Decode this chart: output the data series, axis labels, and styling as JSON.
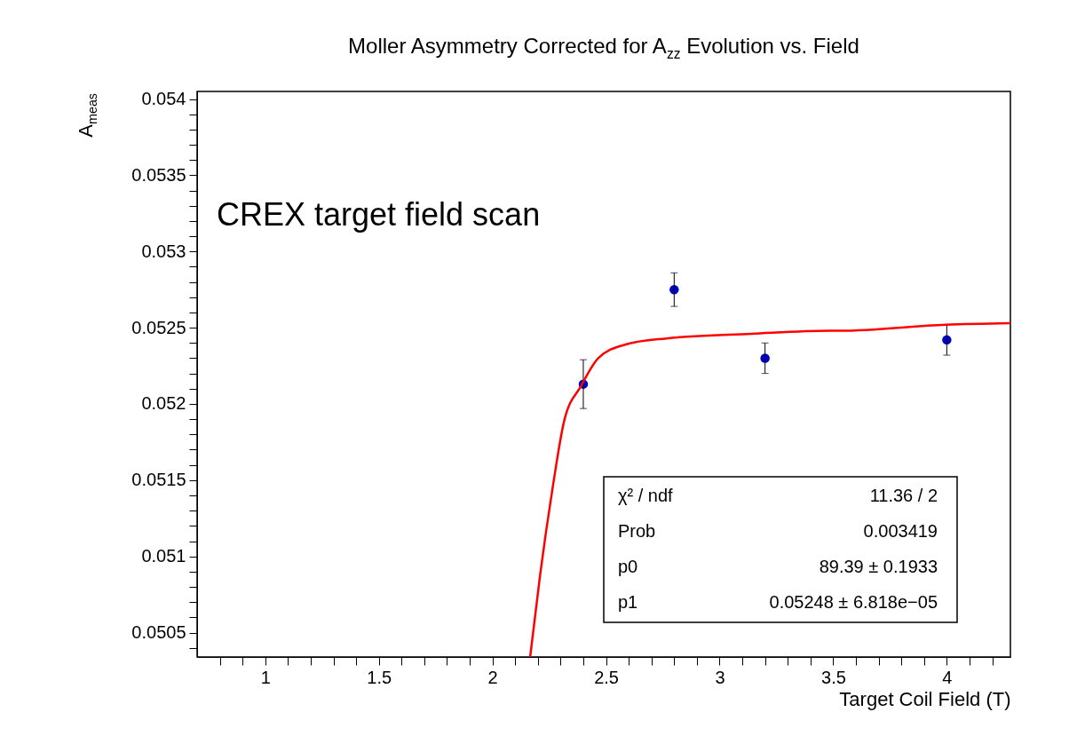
{
  "chart_data": {
    "type": "scatter",
    "title": "Moller Asymmetry Corrected for A$_{zz}$ Evolution vs. Field",
    "xlabel": "Target Coil Field (T)",
    "ylabel": "A$_{meas}$",
    "xlim": [
      0.7,
      4.28
    ],
    "ylim": [
      0.05034,
      0.05405
    ],
    "xticks": [
      {
        "value": 0.8,
        "label": null
      },
      {
        "value": 0.9,
        "label": null
      },
      1,
      {
        "value": 1.1,
        "label": null
      },
      {
        "value": 1.2,
        "label": null
      },
      {
        "value": 1.3,
        "label": null
      },
      {
        "value": 1.4,
        "label": null
      },
      1.5,
      {
        "value": 1.6,
        "label": null
      },
      {
        "value": 1.7,
        "label": null
      },
      {
        "value": 1.8,
        "label": null
      },
      {
        "value": 1.9,
        "label": null
      },
      2,
      {
        "value": 2.1,
        "label": null
      },
      {
        "value": 2.2,
        "label": null
      },
      {
        "value": 2.3,
        "label": null
      },
      {
        "value": 2.4,
        "label": null
      },
      2.5,
      {
        "value": 2.6,
        "label": null
      },
      {
        "value": 2.7,
        "label": null
      },
      {
        "value": 2.8,
        "label": null
      },
      {
        "value": 2.9,
        "label": null
      },
      3,
      {
        "value": 3.1,
        "label": null
      },
      {
        "value": 3.2,
        "label": null
      },
      {
        "value": 3.3,
        "label": null
      },
      {
        "value": 3.4,
        "label": null
      },
      3.5,
      {
        "value": 3.6,
        "label": null
      },
      {
        "value": 3.7,
        "label": null
      },
      {
        "value": 3.8,
        "label": null
      },
      {
        "value": 3.9,
        "label": null
      },
      4,
      {
        "value": 4.1,
        "label": null
      },
      {
        "value": 4.2,
        "label": null
      }
    ],
    "yticks": [
      {
        "value": 0.0504,
        "label": null
      },
      0.0505,
      {
        "value": 0.0506,
        "label": null
      },
      {
        "value": 0.0507,
        "label": null
      },
      {
        "value": 0.0508,
        "label": null
      },
      {
        "value": 0.0509,
        "label": null
      },
      0.051,
      {
        "value": 0.0511,
        "label": null
      },
      {
        "value": 0.0512,
        "label": null
      },
      {
        "value": 0.0513,
        "label": null
      },
      {
        "value": 0.0514,
        "label": null
      },
      0.0515,
      {
        "value": 0.0516,
        "label": null
      },
      {
        "value": 0.0517,
        "label": null
      },
      {
        "value": 0.0518,
        "label": null
      },
      {
        "value": 0.0519,
        "label": null
      },
      0.052,
      {
        "value": 0.0521,
        "label": null
      },
      {
        "value": 0.0522,
        "label": null
      },
      {
        "value": 0.0523,
        "label": null
      },
      {
        "value": 0.0524,
        "label": null
      },
      0.0525,
      {
        "value": 0.0526,
        "label": null
      },
      {
        "value": 0.0527,
        "label": null
      },
      {
        "value": 0.0528,
        "label": null
      },
      {
        "value": 0.0529,
        "label": null
      },
      0.053,
      {
        "value": 0.0531,
        "label": null
      },
      {
        "value": 0.0532,
        "label": null
      },
      {
        "value": 0.0533,
        "label": null
      },
      {
        "value": 0.0534,
        "label": null
      },
      0.0535,
      {
        "value": 0.0536,
        "label": null
      },
      {
        "value": 0.0537,
        "label": null
      },
      {
        "value": 0.0538,
        "label": null
      },
      {
        "value": 0.0539,
        "label": null
      },
      0.054
    ],
    "grid": false,
    "marker": "circle",
    "series": [
      {
        "type": "scatter",
        "color": "#0000cc",
        "x": [
          2.4,
          2.8,
          3.2,
          4.0
        ],
        "values": [
          0.05213,
          0.05275,
          0.0523,
          0.05242
        ],
        "errors": [
          0.00016,
          0.00011,
          0.0001,
          0.0001
        ]
      },
      {
        "type": "line",
        "color": "#ff0000",
        "marker": "none",
        "x": [
          2.166,
          2.21,
          2.264,
          2.316,
          2.391,
          2.466,
          2.586,
          2.766,
          3.141,
          3.485,
          3.531,
          3.996,
          4.28
        ],
        "values": [
          0.05034,
          0.05088,
          0.05144,
          0.05189,
          0.05212,
          0.0523,
          0.05239,
          0.05243,
          0.05246,
          0.05248,
          0.05248,
          0.05252,
          0.05253
        ]
      }
    ],
    "annotations": [
      "CREX target field scan",
      "χ² / ndf",
      "11.36 / 2",
      "Prob",
      "0.003419",
      "p0",
      "89.39 ± 0.1933",
      "p1",
      "0.05248 ± 6.818e−05"
    ]
  }
}
